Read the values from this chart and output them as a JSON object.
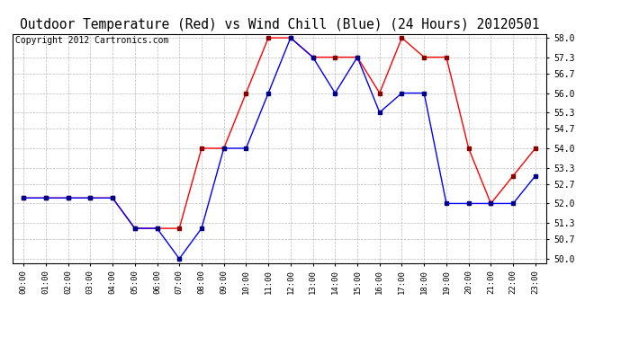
{
  "title": "Outdoor Temperature (Red) vs Wind Chill (Blue) (24 Hours) 20120501",
  "copyright": "Copyright 2012 Cartronics.com",
  "x_labels": [
    "00:00",
    "01:00",
    "02:00",
    "03:00",
    "04:00",
    "05:00",
    "06:00",
    "07:00",
    "08:00",
    "09:00",
    "10:00",
    "11:00",
    "12:00",
    "13:00",
    "14:00",
    "15:00",
    "16:00",
    "17:00",
    "18:00",
    "19:00",
    "20:00",
    "21:00",
    "22:00",
    "23:00"
  ],
  "temp_red": [
    52.2,
    52.2,
    52.2,
    52.2,
    52.2,
    51.1,
    51.1,
    51.1,
    54.0,
    54.0,
    56.0,
    58.0,
    58.0,
    57.3,
    57.3,
    57.3,
    56.0,
    58.0,
    57.3,
    57.3,
    54.0,
    52.0,
    53.0,
    54.0
  ],
  "wind_chill_blue": [
    52.2,
    52.2,
    52.2,
    52.2,
    52.2,
    51.1,
    51.1,
    50.0,
    51.1,
    54.0,
    54.0,
    56.0,
    58.0,
    57.3,
    56.0,
    57.3,
    55.3,
    56.0,
    56.0,
    52.0,
    52.0,
    52.0,
    52.0,
    53.0
  ],
  "y_ticks": [
    50.0,
    50.7,
    51.3,
    52.0,
    52.7,
    53.3,
    54.0,
    54.7,
    55.3,
    56.0,
    56.7,
    57.3,
    58.0
  ],
  "y_min": 49.85,
  "y_max": 58.15,
  "background_color": "#ffffff",
  "plot_background": "#ffffff",
  "grid_color": "#bbbbbb",
  "line_color_red": "#ff0000",
  "line_color_blue": "#0000ff",
  "marker_color_red": "#880000",
  "marker_color_blue": "#000088",
  "title_fontsize": 10.5,
  "copyright_fontsize": 7
}
